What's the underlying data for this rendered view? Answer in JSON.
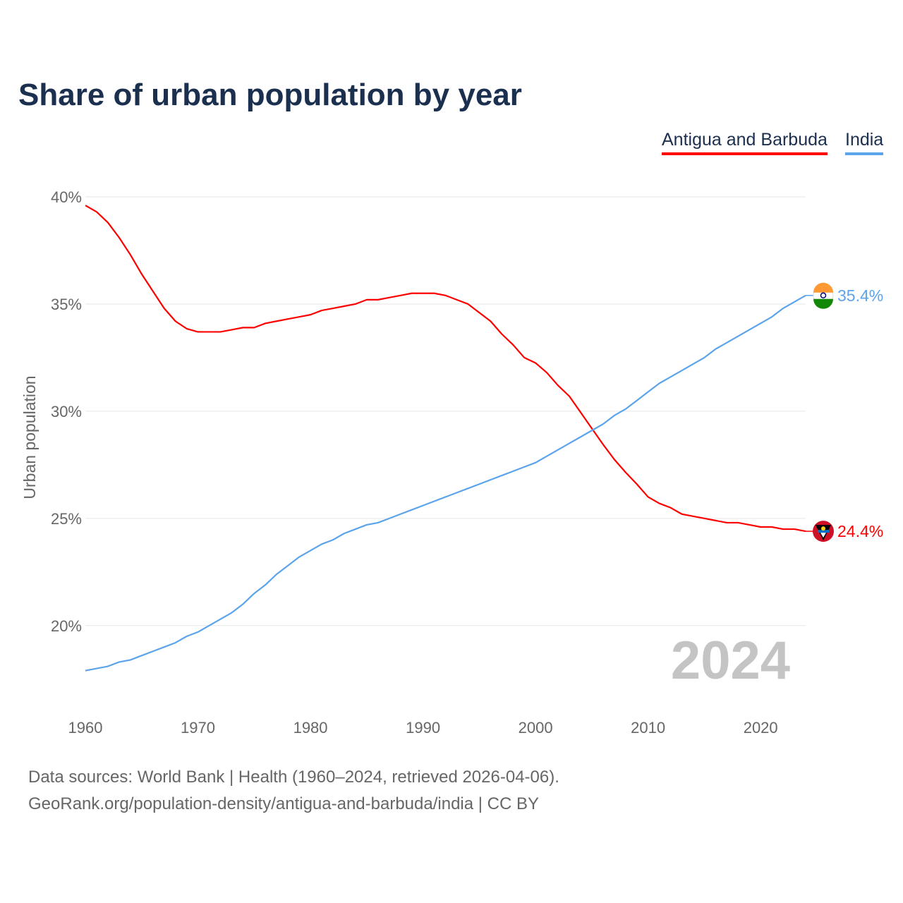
{
  "chart_data": {
    "type": "line",
    "title": "Share of urban population by year",
    "xlabel": "",
    "ylabel": "Urban population",
    "xlim": [
      1960,
      2024
    ],
    "ylim": [
      16.9,
      40
    ],
    "x_ticks": [
      1960,
      1970,
      1980,
      1990,
      2000,
      2010,
      2020
    ],
    "y_ticks": [
      20,
      25,
      30,
      35,
      40
    ],
    "y_tick_labels": [
      "20%",
      "25%",
      "30%",
      "35%",
      "40%"
    ],
    "grid": true,
    "legend_position": "top-right",
    "year_watermark": "2024",
    "series": [
      {
        "name": "Antigua and Barbuda",
        "color": "#ff0000",
        "end_label": "24.4%",
        "start_year": 1960,
        "values": [
          39.6,
          39.3,
          38.8,
          38.1,
          37.3,
          36.4,
          35.6,
          34.8,
          34.2,
          33.85,
          33.7,
          33.7,
          33.7,
          33.8,
          33.9,
          33.9,
          34.1,
          34.2,
          34.3,
          34.4,
          34.5,
          34.7,
          34.8,
          34.9,
          35.0,
          35.2,
          35.2,
          35.3,
          35.4,
          35.5,
          35.5,
          35.5,
          35.4,
          35.2,
          35.0,
          34.6,
          34.2,
          33.6,
          33.1,
          32.5,
          32.25,
          31.8,
          31.2,
          30.7,
          29.95,
          29.2,
          28.45,
          27.75,
          27.15,
          26.6,
          26.0,
          25.7,
          25.5,
          25.2,
          25.1,
          25.0,
          24.9,
          24.8,
          24.8,
          24.7,
          24.6,
          24.6,
          24.5,
          24.5,
          24.4
        ]
      },
      {
        "name": "India",
        "color": "#5ba4ec",
        "end_label": "35.4%",
        "start_year": 1960,
        "values": [
          17.9,
          18.0,
          18.1,
          18.3,
          18.4,
          18.6,
          18.8,
          19.0,
          19.2,
          19.5,
          19.7,
          20.0,
          20.3,
          20.6,
          21.0,
          21.5,
          21.9,
          22.4,
          22.8,
          23.2,
          23.5,
          23.8,
          24.0,
          24.3,
          24.5,
          24.7,
          24.8,
          25.0,
          25.2,
          25.4,
          25.6,
          25.8,
          26.0,
          26.2,
          26.4,
          26.6,
          26.8,
          27.0,
          27.2,
          27.4,
          27.6,
          27.9,
          28.2,
          28.5,
          28.8,
          29.1,
          29.4,
          29.8,
          30.1,
          30.5,
          30.9,
          31.3,
          31.6,
          31.9,
          32.2,
          32.5,
          32.9,
          33.2,
          33.5,
          33.8,
          34.1,
          34.4,
          34.8,
          35.1,
          35.4
        ]
      }
    ]
  },
  "footer": {
    "sources": "Data sources: World Bank | Health (1960–2024, retrieved 2026-04-06).",
    "credit": "GeoRank.org/population-density/antigua-and-barbuda/india | CC BY"
  }
}
